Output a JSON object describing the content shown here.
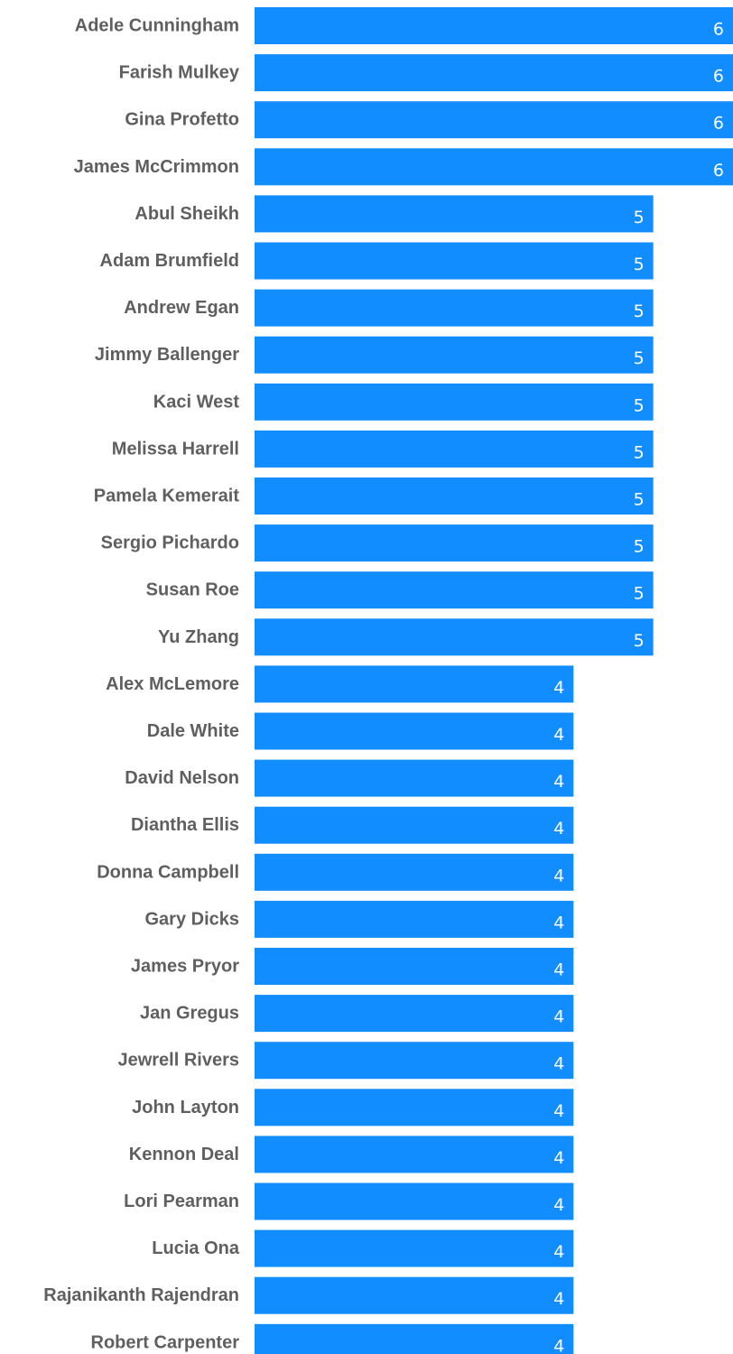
{
  "colors": {
    "bar": "#118DFF",
    "category_text": "#5f5f5f",
    "value_text": "#ffffff",
    "background": "#ffffff"
  },
  "chart_data": {
    "type": "bar",
    "orientation": "horizontal",
    "title": "",
    "xlabel": "",
    "ylabel": "",
    "xlim": [
      0,
      6
    ],
    "grid": false,
    "legend": "none",
    "data_labels": "inside-end",
    "categories": [
      "Adele Cunningham",
      "Farish Mulkey",
      "Gina Profetto",
      "James McCrimmon",
      "Abul Sheikh",
      "Adam Brumfield",
      "Andrew Egan",
      "Jimmy Ballenger",
      "Kaci West",
      "Melissa Harrell",
      "Pamela Kemerait",
      "Sergio Pichardo",
      "Susan Roe",
      "Yu Zhang",
      "Alex McLemore",
      "Dale White",
      "David Nelson",
      "Diantha Ellis",
      "Donna Campbell",
      "Gary Dicks",
      "James Pryor",
      "Jan Gregus",
      "Jewrell Rivers",
      "John Layton",
      "Kennon Deal",
      "Lori Pearman",
      "Lucia Ona",
      "Rajanikanth Rajendran",
      "Robert Carpenter"
    ],
    "values": [
      6,
      6,
      6,
      6,
      5,
      5,
      5,
      5,
      5,
      5,
      5,
      5,
      5,
      5,
      4,
      4,
      4,
      4,
      4,
      4,
      4,
      4,
      4,
      4,
      4,
      4,
      4,
      4,
      4
    ]
  }
}
